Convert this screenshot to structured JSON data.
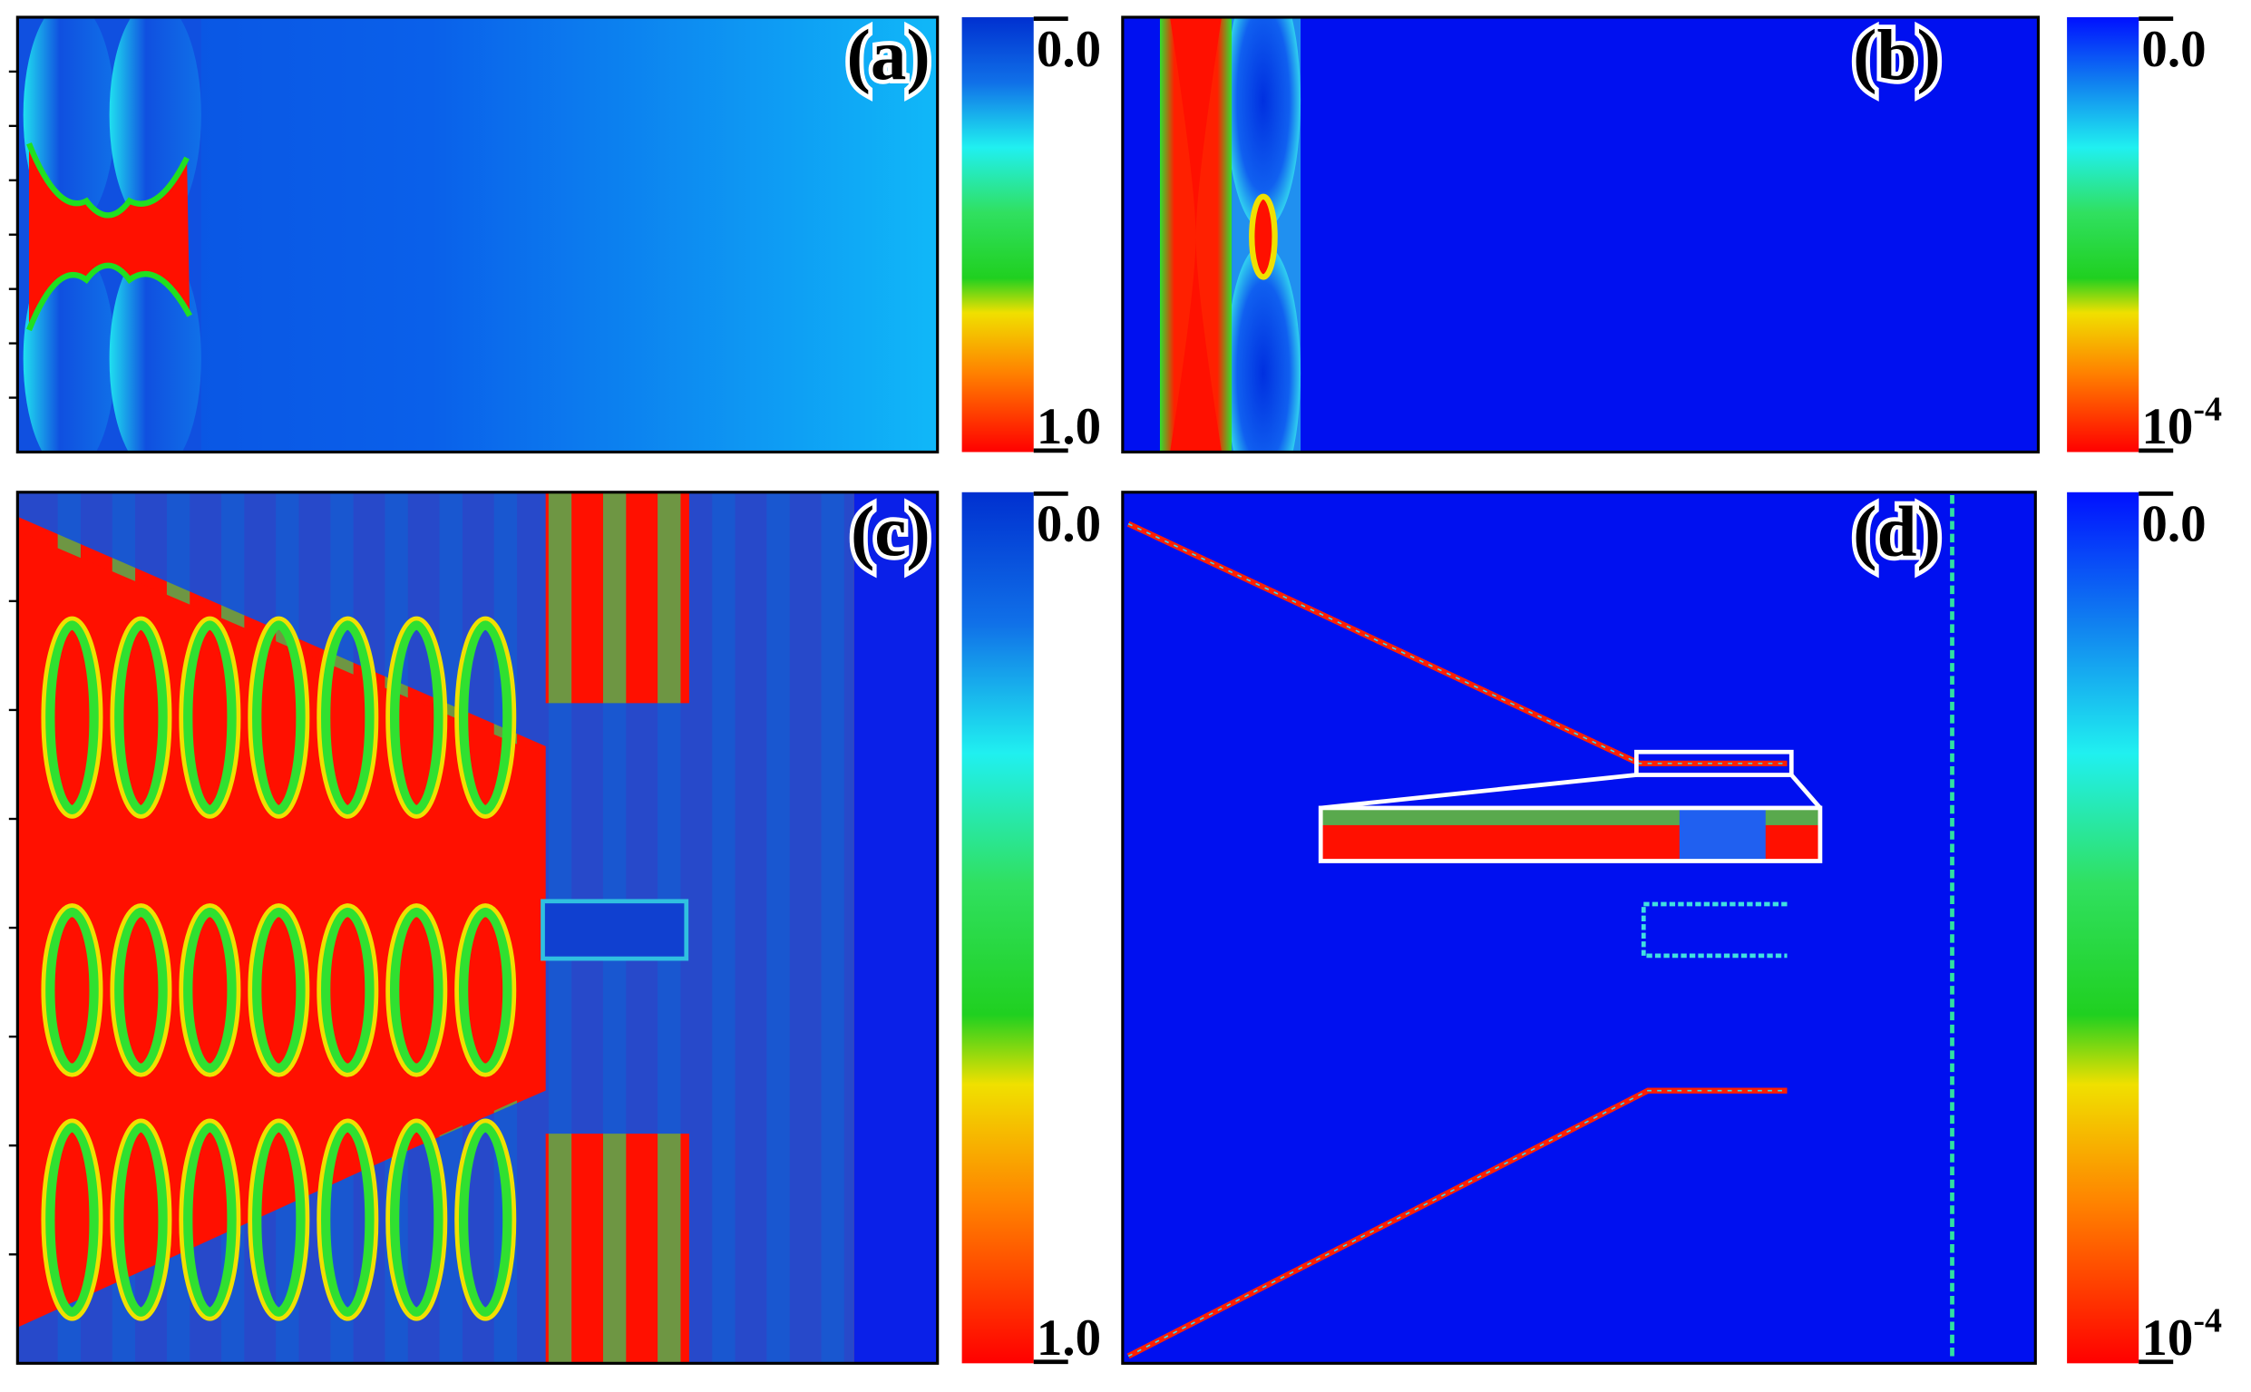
{
  "panels": [
    {
      "label": "(a)",
      "colorbar": {
        "top": "0.0",
        "bottom": "1.0"
      }
    },
    {
      "label": "(b)",
      "colorbar": {
        "top": "0.0",
        "bottom": {
          "base": "10",
          "exponent": "-4"
        }
      }
    },
    {
      "label": "(c)",
      "colorbar": {
        "top": "0.0",
        "bottom": "1.0"
      }
    },
    {
      "label": "(d)",
      "colorbar": {
        "top": "0.0",
        "bottom": {
          "base": "10",
          "exponent": "-4"
        }
      }
    }
  ]
}
